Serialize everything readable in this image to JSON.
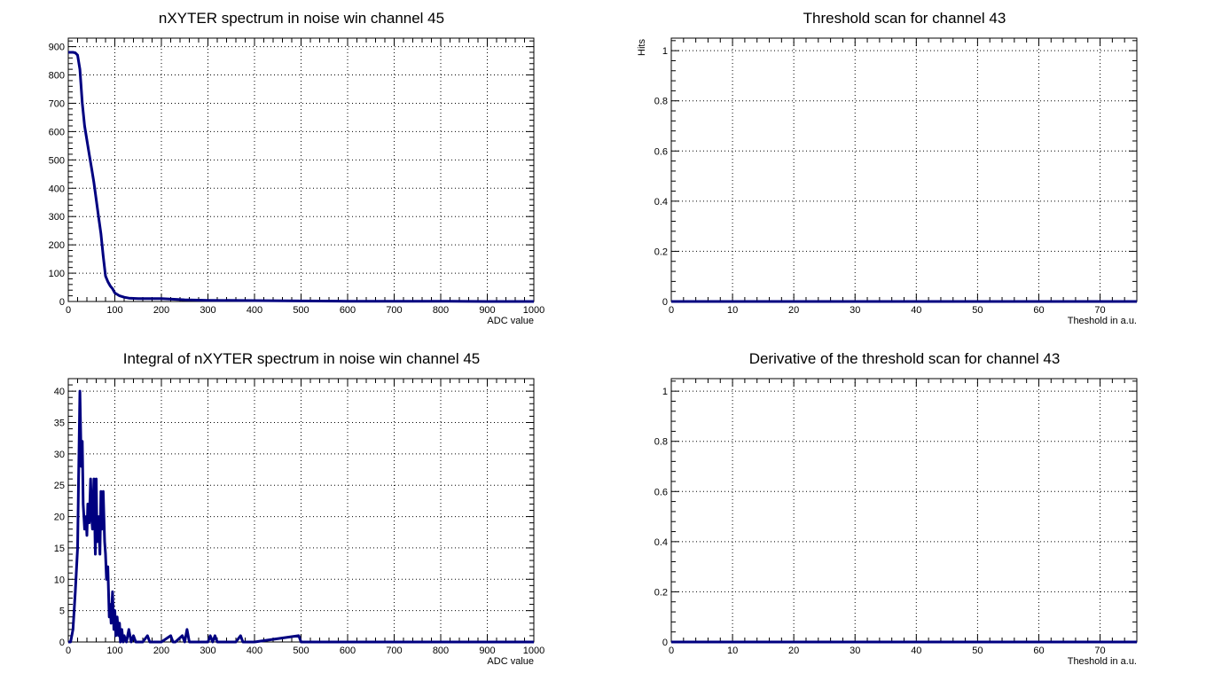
{
  "colors": {
    "series": "#000080",
    "grid": "#000000",
    "background": "#ffffff"
  },
  "chart_data": [
    {
      "type": "line",
      "title": "nXYTER spectrum in noise win channel 45",
      "xlabel": "ADC value",
      "ylabel": "",
      "xlim": [
        0,
        1000
      ],
      "ylim": [
        0,
        930
      ],
      "grid": true,
      "legend": "none",
      "xticks": [
        0,
        100,
        200,
        300,
        400,
        500,
        600,
        700,
        800,
        900,
        1000
      ],
      "yticks": [
        0,
        100,
        200,
        300,
        400,
        500,
        600,
        700,
        800,
        900
      ],
      "series": [
        {
          "x": [
            0,
            5,
            10,
            15,
            20,
            25,
            30,
            35,
            40,
            45,
            50,
            55,
            60,
            65,
            70,
            75,
            80,
            85,
            90,
            95,
            100,
            110,
            120,
            130,
            140,
            150,
            170,
            200,
            250,
            300,
            400,
            500,
            600,
            700,
            800,
            900,
            1000
          ],
          "y": [
            880,
            880,
            880,
            878,
            870,
            820,
            700,
            620,
            570,
            520,
            470,
            420,
            360,
            300,
            240,
            160,
            90,
            70,
            55,
            45,
            30,
            20,
            15,
            12,
            11,
            10,
            10,
            10,
            6,
            4,
            3,
            2,
            1,
            1,
            1,
            0,
            0
          ]
        }
      ]
    },
    {
      "type": "line",
      "title": "Threshold scan for channel 43",
      "xlabel": "Theshold in a.u.",
      "ylabel": "Hits",
      "xlim": [
        0,
        76
      ],
      "ylim": [
        0,
        1.05
      ],
      "grid": true,
      "legend": "none",
      "xticks": [
        0,
        10,
        20,
        30,
        40,
        50,
        60,
        70
      ],
      "yticks": [
        0,
        0.2,
        0.4,
        0.6,
        0.8,
        1
      ],
      "series": [
        {
          "x": [
            0,
            76
          ],
          "y": [
            0,
            0
          ]
        }
      ]
    },
    {
      "type": "line",
      "title": "Integral of nXYTER spectrum in noise win channel 45",
      "xlabel": "ADC value",
      "ylabel": "",
      "xlim": [
        0,
        1000
      ],
      "ylim": [
        0,
        42
      ],
      "grid": true,
      "legend": "none",
      "xticks": [
        0,
        100,
        200,
        300,
        400,
        500,
        600,
        700,
        800,
        900,
        1000
      ],
      "yticks": [
        0,
        5,
        10,
        15,
        20,
        25,
        30,
        35,
        40
      ],
      "series": [
        {
          "x": [
            0,
            5,
            10,
            15,
            20,
            22,
            25,
            28,
            30,
            32,
            35,
            38,
            40,
            42,
            45,
            48,
            50,
            52,
            55,
            58,
            60,
            62,
            65,
            68,
            70,
            72,
            75,
            78,
            80,
            82,
            85,
            88,
            90,
            92,
            95,
            98,
            100,
            102,
            105,
            108,
            110,
            112,
            115,
            118,
            120,
            125,
            130,
            135,
            140,
            145,
            150,
            160,
            170,
            175,
            180,
            190,
            200,
            220,
            225,
            230,
            245,
            250,
            255,
            260,
            265,
            270,
            300,
            305,
            310,
            315,
            320,
            330,
            340,
            360,
            370,
            375,
            380,
            400,
            495,
            500,
            505,
            600,
            700,
            800,
            900,
            1000
          ],
          "y": [
            0,
            0,
            2,
            8,
            15,
            25,
            40,
            28,
            32,
            22,
            18,
            20,
            17,
            22,
            19,
            26,
            20,
            18,
            26,
            14,
            26,
            16,
            20,
            14,
            24,
            18,
            24,
            16,
            14,
            10,
            12,
            4,
            6,
            3,
            8,
            2,
            5,
            1,
            4,
            1,
            3,
            0,
            2,
            0,
            1,
            0,
            2,
            0,
            1,
            0,
            0,
            0,
            1,
            0,
            0,
            0,
            0,
            1,
            0,
            0,
            1,
            0,
            2,
            0,
            0,
            0,
            0,
            1,
            0,
            1,
            0,
            0,
            0,
            0,
            1,
            0,
            0,
            0,
            1,
            0,
            0,
            0,
            0,
            0,
            0,
            0
          ]
        }
      ]
    },
    {
      "type": "line",
      "title": "Derivative of the threshold scan for channel 43",
      "xlabel": "Theshold in a.u.",
      "ylabel": "",
      "xlim": [
        0,
        76
      ],
      "ylim": [
        0,
        1.05
      ],
      "grid": true,
      "legend": "none",
      "xticks": [
        0,
        10,
        20,
        30,
        40,
        50,
        60,
        70
      ],
      "yticks": [
        0,
        0.2,
        0.4,
        0.6,
        0.8,
        1
      ],
      "series": [
        {
          "x": [
            0,
            76
          ],
          "y": [
            0,
            0
          ]
        }
      ]
    }
  ]
}
